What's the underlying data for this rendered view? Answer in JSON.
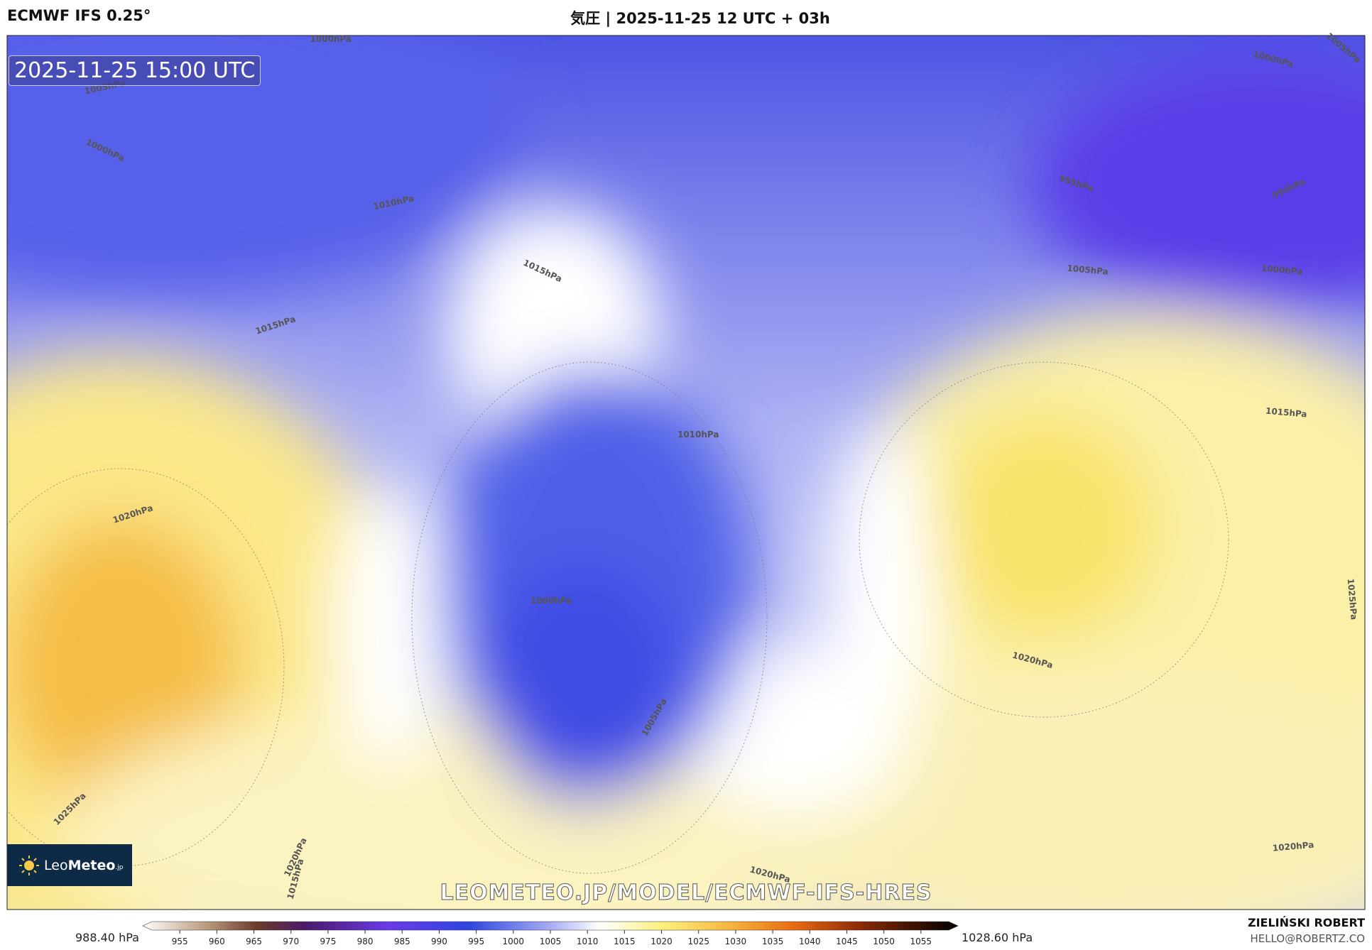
{
  "header": {
    "model": "ECMWF IFS 0.25°",
    "title": "気圧 | 2025-11-25 12 UTC + 03h"
  },
  "map": {
    "timestamp": "2025-11-25 15:00 UTC",
    "isobar_labels": [
      "1000hPa",
      "1005hPa",
      "1000hPa",
      "1010hPa",
      "1015hPa",
      "1015hPa",
      "1010hPa",
      "1020hPa",
      "1000hPa",
      "1005hPa",
      "1025hPa",
      "1020hPa",
      "1015hPa",
      "1020hPa",
      "1020hPa",
      "1015hPa",
      "1025hPa",
      "1020hPa",
      "1005hPa",
      "1000hPa",
      "995hPa",
      "990hPa",
      "1000hPa",
      "1005hPa"
    ],
    "watermark": "LEOMETEO.JP/MODEL/ECMWF-IFS-HRES",
    "logo": [
      "Leo",
      "Meteo",
      ".jp"
    ]
  },
  "colorbar": {
    "min_label": "988.40 hPa",
    "max_label": "1028.60 hPa",
    "range": [
      950,
      1060
    ],
    "ticks": [
      955,
      960,
      965,
      970,
      975,
      980,
      985,
      990,
      995,
      1000,
      1005,
      1010,
      1015,
      1020,
      1025,
      1030,
      1035,
      1040,
      1045,
      1050,
      1055
    ]
  },
  "footer": {
    "author": "ZIELIŃSKI ROBERT",
    "email": "HELLO@ROBERTZ.CO"
  }
}
